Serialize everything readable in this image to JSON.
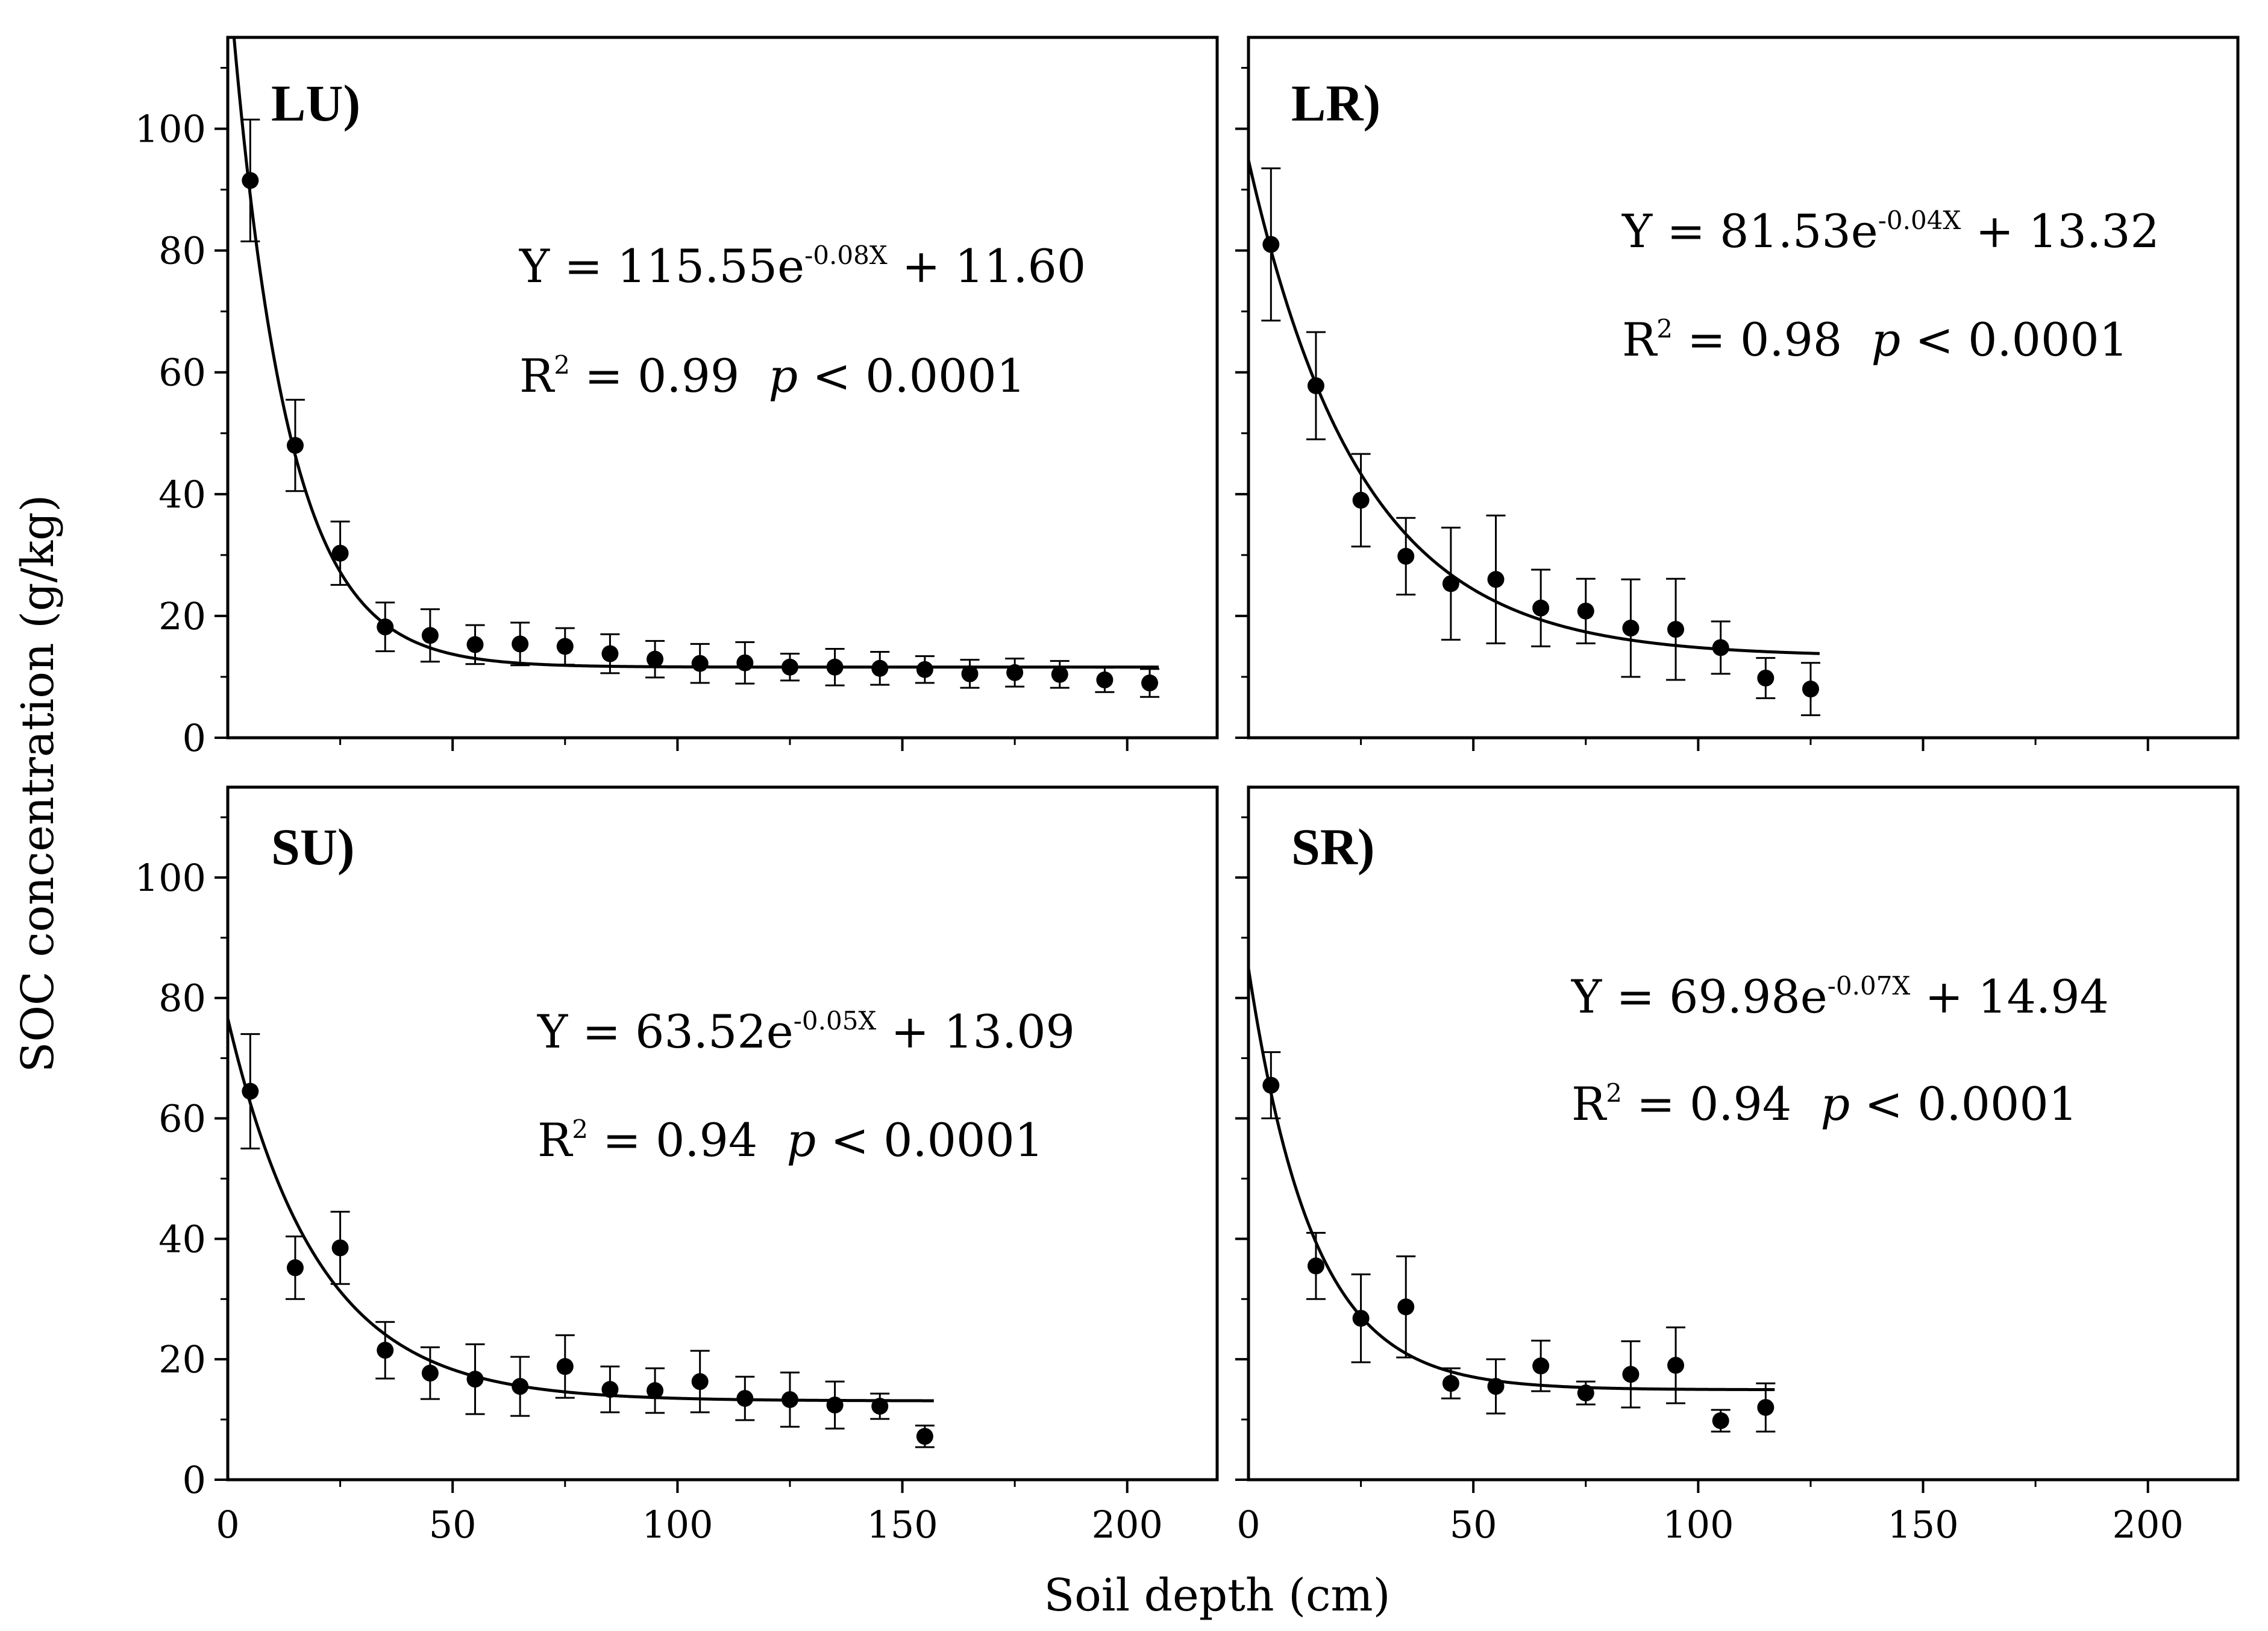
{
  "figure": {
    "xlabel": "Soil depth (cm)",
    "ylabel": "SOC concentration (g/kg)"
  },
  "chart_data": [
    {
      "type": "scatter",
      "panel": "LU)",
      "position": "top-left",
      "equation": {
        "lead": "Y = 115.55e",
        "exponent": "-0.08X",
        "tail": " + 11.60"
      },
      "fit_stats": {
        "r_lead": "R",
        "r_sup": "2",
        "r_value": " = 0.99",
        "p_symbol": "p",
        "p_value": " < 0.0001"
      },
      "fit": {
        "a": 115.55,
        "b": 0.08,
        "c": 11.6,
        "x_range": [
          0,
          207
        ]
      },
      "xlim": [
        0,
        220
      ],
      "ylim": [
        0,
        115
      ],
      "xticks": [
        0,
        50,
        100,
        150,
        200
      ],
      "yticks": [
        0,
        20,
        40,
        60,
        80,
        100
      ],
      "x": [
        5,
        15,
        25,
        35,
        45,
        55,
        65,
        75,
        85,
        95,
        105,
        115,
        125,
        135,
        145,
        155,
        165,
        175,
        185,
        195,
        205
      ],
      "y": [
        91.5,
        48,
        30.3,
        18.2,
        16.8,
        15.3,
        15.4,
        15,
        13.8,
        12.9,
        12.2,
        12.3,
        11.6,
        11.6,
        11.4,
        11.2,
        10.5,
        10.7,
        10.4,
        9.5,
        9
      ],
      "y_err": [
        10,
        7.5,
        5.2,
        4,
        4.3,
        3.2,
        3.5,
        3,
        3.2,
        3,
        3.2,
        3.4,
        2.2,
        3,
        2.7,
        2.2,
        2.3,
        2.3,
        2.2,
        2,
        2.3
      ]
    },
    {
      "type": "scatter",
      "panel": "LR)",
      "position": "top-right",
      "equation": {
        "lead": "Y = 81.53e",
        "exponent": "-0.04X",
        "tail": " + 13.32"
      },
      "fit_stats": {
        "r_lead": "R",
        "r_sup": "2",
        "r_value": " = 0.98",
        "p_symbol": "p",
        "p_value": " < 0.0001"
      },
      "fit": {
        "a": 81.53,
        "b": 0.04,
        "c": 13.32,
        "x_range": [
          0,
          127
        ]
      },
      "xlim": [
        0,
        220
      ],
      "ylim": [
        0,
        115
      ],
      "xticks": [
        0,
        50,
        100,
        150,
        200
      ],
      "yticks": [
        0,
        20,
        40,
        60,
        80,
        100
      ],
      "x": [
        5,
        15,
        25,
        35,
        45,
        55,
        65,
        75,
        85,
        95,
        105,
        115,
        125
      ],
      "y": [
        81,
        57.8,
        39,
        29.8,
        25.3,
        26,
        21.3,
        20.8,
        18,
        17.8,
        14.8,
        9.8,
        8
      ],
      "y_err": [
        12.5,
        8.8,
        7.6,
        6.3,
        9.2,
        10.5,
        6.3,
        5.3,
        8,
        8.3,
        4.3,
        3.3,
        4.3
      ]
    },
    {
      "type": "scatter",
      "panel": "SU)",
      "position": "bottom-left",
      "equation": {
        "lead": "Y = 63.52e",
        "exponent": "-0.05X",
        "tail": " + 13.09"
      },
      "fit_stats": {
        "r_lead": "R",
        "r_sup": "2",
        "r_value": " = 0.94",
        "p_symbol": "p",
        "p_value": " < 0.0001"
      },
      "fit": {
        "a": 63.52,
        "b": 0.05,
        "c": 13.09,
        "x_range": [
          0,
          157
        ]
      },
      "xlim": [
        0,
        220
      ],
      "ylim": [
        0,
        115
      ],
      "xticks": [
        0,
        50,
        100,
        150,
        200
      ],
      "yticks": [
        0,
        20,
        40,
        60,
        80,
        100
      ],
      "x": [
        5,
        15,
        25,
        35,
        45,
        55,
        65,
        75,
        85,
        95,
        105,
        115,
        125,
        135,
        145,
        155
      ],
      "y": [
        64.5,
        35.2,
        38.5,
        21.5,
        17.7,
        16.7,
        15.5,
        18.8,
        15,
        14.8,
        16.3,
        13.5,
        13.3,
        12.4,
        12.2,
        7.2
      ],
      "y_err": [
        9.5,
        5.2,
        6,
        4.7,
        4.3,
        5.8,
        4.9,
        5.2,
        3.8,
        3.7,
        5.1,
        3.6,
        4.5,
        3.9,
        2.1,
        1.8
      ]
    },
    {
      "type": "scatter",
      "panel": "SR)",
      "position": "bottom-right",
      "equation": {
        "lead": "Y = 69.98e",
        "exponent": "-0.07X",
        "tail": " + 14.94"
      },
      "fit_stats": {
        "r_lead": "R",
        "r_sup": "2",
        "r_value": " = 0.94",
        "p_symbol": "p",
        "p_value": " < 0.0001"
      },
      "fit": {
        "a": 69.98,
        "b": 0.07,
        "c": 14.94,
        "x_range": [
          0,
          117
        ]
      },
      "xlim": [
        0,
        220
      ],
      "ylim": [
        0,
        115
      ],
      "xticks": [
        0,
        50,
        100,
        150,
        200
      ],
      "yticks": [
        0,
        20,
        40,
        60,
        80,
        100
      ],
      "x": [
        5,
        15,
        25,
        35,
        45,
        55,
        65,
        75,
        85,
        95,
        105,
        115
      ],
      "y": [
        65.5,
        35.5,
        26.8,
        28.7,
        16,
        15.5,
        18.9,
        14.4,
        17.5,
        19,
        9.8,
        12
      ],
      "y_err": [
        5.5,
        5.5,
        7.3,
        8.4,
        2.5,
        4.5,
        4.2,
        1.9,
        5.5,
        6.3,
        1.8,
        4
      ]
    }
  ]
}
